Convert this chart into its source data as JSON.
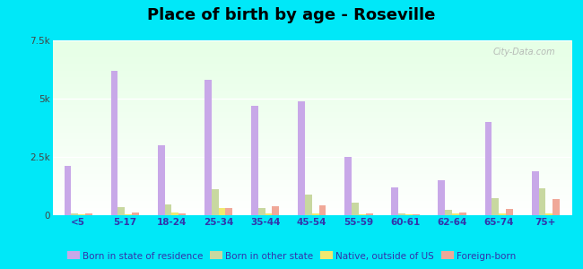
{
  "title": "Place of birth by age - Roseville",
  "categories": [
    "<5",
    "5-17",
    "18-24",
    "25-34",
    "35-44",
    "45-54",
    "55-59",
    "60-61",
    "62-64",
    "65-74",
    "75+"
  ],
  "series": {
    "Born in state of residence": [
      2100,
      6200,
      3000,
      5800,
      4700,
      4900,
      2500,
      1200,
      1500,
      4000,
      1900
    ],
    "Born in other state": [
      80,
      350,
      450,
      1100,
      300,
      900,
      550,
      80,
      250,
      750,
      1150
    ],
    "Native, outside of US": [
      40,
      40,
      120,
      320,
      80,
      80,
      40,
      40,
      80,
      80,
      80
    ],
    "Foreign-born": [
      80,
      120,
      80,
      320,
      380,
      420,
      80,
      40,
      120,
      270,
      680
    ]
  },
  "colors": {
    "Born in state of residence": "#c8a8e8",
    "Born in other state": "#c8d8a0",
    "Native, outside of US": "#f0e870",
    "Foreign-born": "#f0a898"
  },
  "ylim": [
    0,
    7500
  ],
  "yticks": [
    0,
    2500,
    5000,
    7500
  ],
  "ytick_labels": [
    "0",
    "2.5k",
    "5k",
    "7.5k"
  ],
  "cyan_bg": "#00e8f8",
  "bar_width": 0.15,
  "title_fontsize": 13,
  "legend_fontsize": 7.5,
  "axis_fontsize": 7.5,
  "watermark": "City-Data.com"
}
